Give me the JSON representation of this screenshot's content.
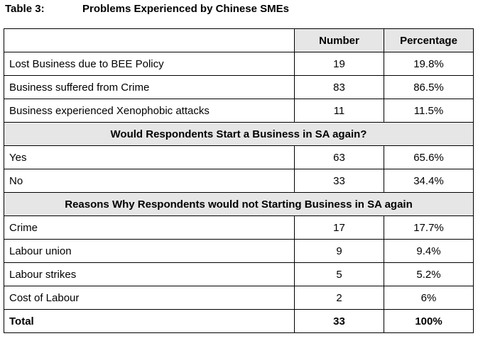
{
  "caption": {
    "number": "Table 3:",
    "title": "Problems Experienced by Chinese SMEs"
  },
  "table": {
    "columns": [
      "",
      "Number",
      "Percentage"
    ],
    "problems": [
      {
        "label": "Lost Business due to BEE Policy",
        "number": "19",
        "percentage": "19.8%"
      },
      {
        "label": "Business suffered from Crime",
        "number": "83",
        "percentage": "86.5%"
      },
      {
        "label": "Business experienced Xenophobic attacks",
        "number": "11",
        "percentage": "11.5%"
      }
    ],
    "section_again": "Would Respondents Start a Business in SA again?",
    "again": [
      {
        "label": "Yes",
        "number": "63",
        "percentage": "65.6%"
      },
      {
        "label": "No",
        "number": "33",
        "percentage": "34.4%"
      }
    ],
    "section_reasons": "Reasons Why Respondents would not Starting Business in SA again",
    "reasons": [
      {
        "label": "Crime",
        "number": "17",
        "percentage": "17.7%"
      },
      {
        "label": "Labour union",
        "number": "9",
        "percentage": "9.4%"
      },
      {
        "label": "Labour strikes",
        "number": "5",
        "percentage": "5.2%"
      },
      {
        "label": "Cost of  Labour",
        "number": "2",
        "percentage": "6%"
      }
    ],
    "total": {
      "label": "Total",
      "number": "33",
      "percentage": "100%"
    }
  }
}
